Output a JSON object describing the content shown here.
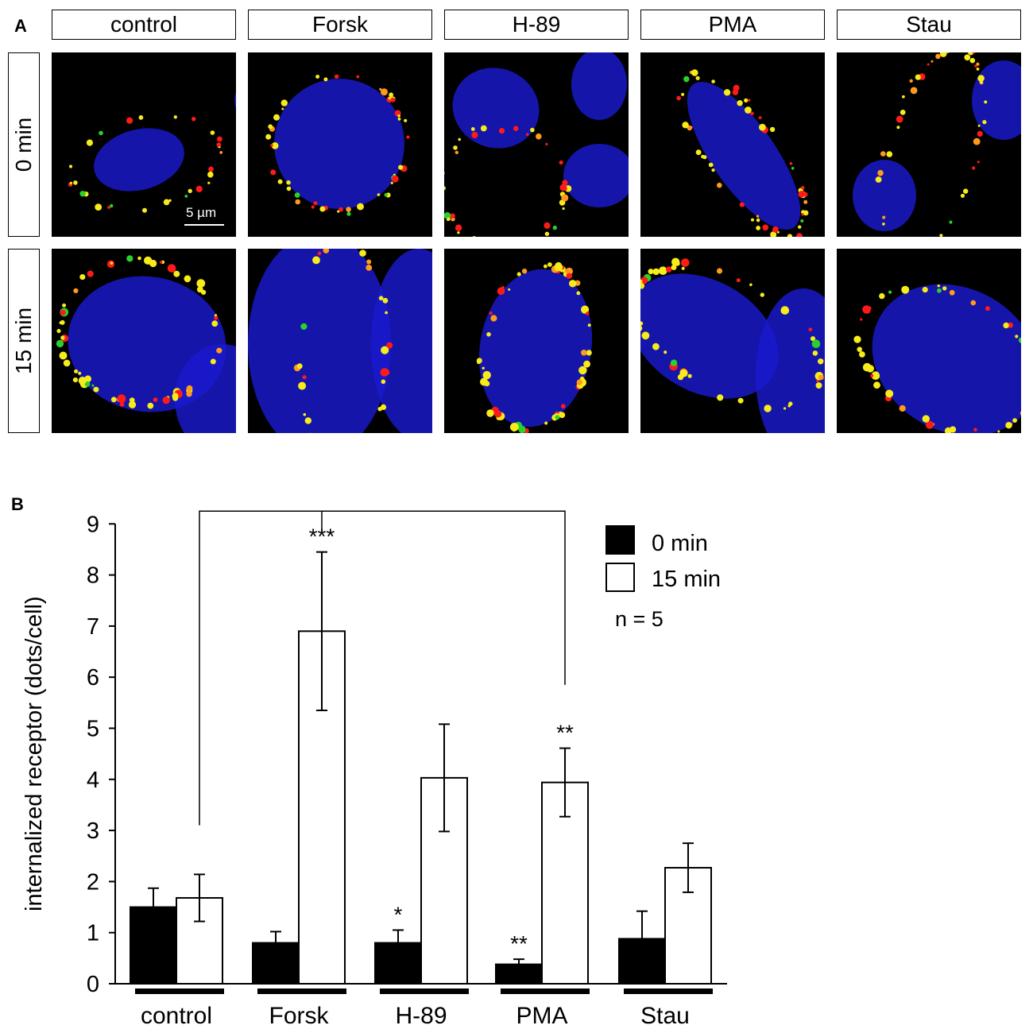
{
  "panel_a": {
    "letter": "A",
    "columns": [
      "control",
      "Forsk",
      "H-89",
      "PMA",
      "Stau"
    ],
    "rows": [
      "0 min",
      "15 min"
    ],
    "scale_bar": "5 µm",
    "channel_colors": {
      "nucleus": "#1a1ad0",
      "red": "#ff1a1a",
      "yellow": "#f7ec1a",
      "green": "#2bd12b"
    }
  },
  "panel_b": {
    "letter": "B",
    "n_label": "n = 5"
  },
  "chart_data": {
    "type": "bar",
    "categories": [
      "control",
      "Forsk",
      "H-89",
      "PMA",
      "Stau"
    ],
    "ylabel": "internalized receptor (dots/cell)",
    "xlabel": "",
    "ylim": [
      0,
      9
    ],
    "yticks": [
      0,
      1,
      2,
      3,
      4,
      5,
      6,
      7,
      8,
      9
    ],
    "legend_position": "top-right",
    "series": [
      {
        "name": "0 min",
        "fill": "#000000",
        "values": [
          1.5,
          0.8,
          0.8,
          0.38,
          0.88
        ],
        "errors": [
          0.37,
          0.22,
          0.25,
          0.1,
          0.54
        ],
        "significance": [
          "",
          "",
          "*",
          "**",
          ""
        ]
      },
      {
        "name": "15 min",
        "fill": "#ffffff",
        "values": [
          1.68,
          6.9,
          4.03,
          3.94,
          2.27
        ],
        "errors": [
          0.46,
          1.55,
          1.05,
          0.67,
          0.48
        ],
        "significance": [
          "",
          "***",
          "",
          "**",
          ""
        ]
      }
    ],
    "comparison_bracket": {
      "from": "control",
      "to": "PMA"
    }
  }
}
